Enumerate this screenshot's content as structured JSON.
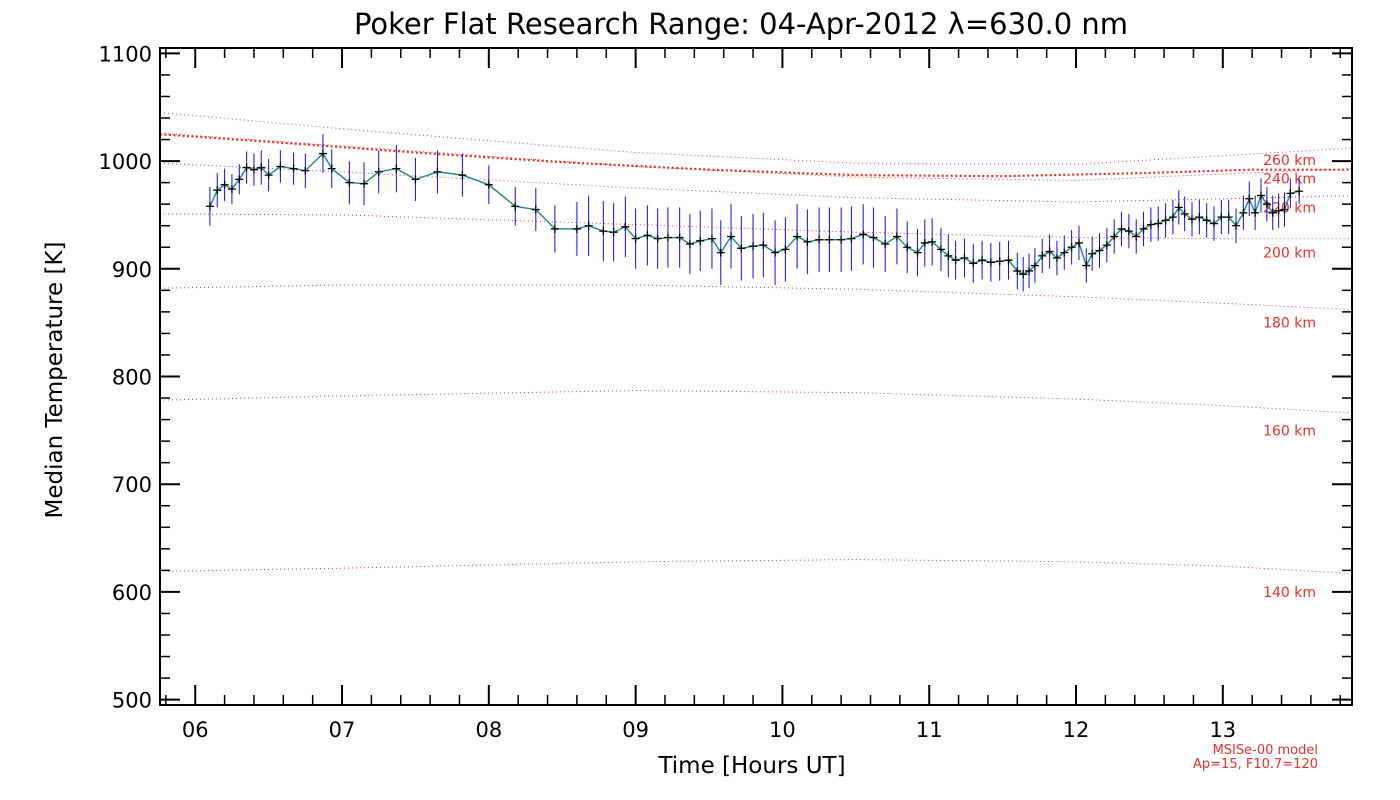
{
  "chart_data": {
    "type": "line",
    "title": "Poker Flat Research Range: 04-Apr-2012 λ=630.0 nm",
    "xlabel": "Time [Hours UT]",
    "ylabel": "Median Temperature [K]",
    "xlim": [
      5.76,
      13.88
    ],
    "ylim": [
      495,
      1105
    ],
    "x_ticks": [
      "06",
      "07",
      "08",
      "09",
      "10",
      "11",
      "12",
      "13"
    ],
    "x_tick_values": [
      6,
      7,
      8,
      9,
      10,
      11,
      12,
      13
    ],
    "y_ticks": [
      "500",
      "600",
      "700",
      "800",
      "900",
      "1000",
      "1100"
    ],
    "y_tick_values": [
      500,
      600,
      700,
      800,
      900,
      1000,
      1100
    ],
    "grid": false,
    "colors": {
      "data": "#000000",
      "connector": "#1a8a8a",
      "error_bars": "#1010e8",
      "model": "#e8302a",
      "axes": "#000000"
    },
    "series": [
      {
        "points": [
          [
            6.1,
            958,
            18
          ],
          [
            6.15,
            973,
            16
          ],
          [
            6.2,
            978,
            15
          ],
          [
            6.25,
            974,
            14
          ],
          [
            6.3,
            983,
            14
          ],
          [
            6.35,
            994,
            15
          ],
          [
            6.4,
            992,
            15
          ],
          [
            6.45,
            994,
            16
          ],
          [
            6.5,
            987,
            15
          ],
          [
            6.58,
            995,
            15
          ],
          [
            6.67,
            993,
            15
          ],
          [
            6.75,
            991,
            16
          ],
          [
            6.87,
            1007,
            18
          ],
          [
            6.93,
            993,
            18
          ],
          [
            7.05,
            980,
            20
          ],
          [
            7.15,
            979,
            20
          ],
          [
            7.25,
            990,
            20
          ],
          [
            7.37,
            993,
            22
          ],
          [
            7.5,
            983,
            20
          ],
          [
            7.65,
            990,
            20
          ],
          [
            7.82,
            987,
            20
          ],
          [
            8.0,
            978,
            18
          ],
          [
            8.18,
            958,
            18
          ],
          [
            8.32,
            955,
            20
          ],
          [
            8.45,
            937,
            22
          ],
          [
            8.6,
            937,
            25
          ],
          [
            8.68,
            940,
            28
          ],
          [
            8.78,
            935,
            28
          ],
          [
            8.85,
            934,
            27
          ],
          [
            8.93,
            939,
            28
          ],
          [
            9.0,
            928,
            28
          ],
          [
            9.08,
            931,
            28
          ],
          [
            9.15,
            928,
            28
          ],
          [
            9.22,
            929,
            28
          ],
          [
            9.3,
            929,
            28
          ],
          [
            9.37,
            923,
            28
          ],
          [
            9.44,
            926,
            28
          ],
          [
            9.52,
            928,
            28
          ],
          [
            9.58,
            915,
            30
          ],
          [
            9.65,
            930,
            30
          ],
          [
            9.72,
            919,
            30
          ],
          [
            9.8,
            921,
            30
          ],
          [
            9.87,
            922,
            30
          ],
          [
            9.95,
            915,
            30
          ],
          [
            10.02,
            918,
            30
          ],
          [
            10.1,
            930,
            30
          ],
          [
            10.17,
            925,
            30
          ],
          [
            10.25,
            927,
            30
          ],
          [
            10.32,
            927,
            30
          ],
          [
            10.4,
            927,
            30
          ],
          [
            10.47,
            928,
            30
          ],
          [
            10.55,
            932,
            28
          ],
          [
            10.62,
            929,
            28
          ],
          [
            10.7,
            923,
            26
          ],
          [
            10.78,
            930,
            26
          ],
          [
            10.85,
            920,
            24
          ],
          [
            10.92,
            915,
            22
          ],
          [
            10.97,
            924,
            22
          ],
          [
            11.02,
            925,
            22
          ],
          [
            11.08,
            918,
            20
          ],
          [
            11.13,
            912,
            20
          ],
          [
            11.18,
            908,
            18
          ],
          [
            11.24,
            910,
            18
          ],
          [
            11.3,
            905,
            18
          ],
          [
            11.36,
            908,
            18
          ],
          [
            11.42,
            906,
            18
          ],
          [
            11.48,
            907,
            18
          ],
          [
            11.54,
            908,
            18
          ],
          [
            11.6,
            898,
            17
          ],
          [
            11.64,
            895,
            16
          ],
          [
            11.68,
            898,
            16
          ],
          [
            11.72,
            903,
            16
          ],
          [
            11.77,
            912,
            16
          ],
          [
            11.82,
            916,
            16
          ],
          [
            11.87,
            910,
            16
          ],
          [
            11.92,
            915,
            16
          ],
          [
            11.97,
            920,
            16
          ],
          [
            12.02,
            924,
            16
          ],
          [
            12.07,
            903,
            16
          ],
          [
            12.11,
            914,
            16
          ],
          [
            12.16,
            917,
            16
          ],
          [
            12.21,
            922,
            16
          ],
          [
            12.26,
            930,
            16
          ],
          [
            12.31,
            937,
            16
          ],
          [
            12.36,
            935,
            16
          ],
          [
            12.41,
            930,
            16
          ],
          [
            12.46,
            937,
            16
          ],
          [
            12.51,
            941,
            16
          ],
          [
            12.56,
            942,
            16
          ],
          [
            12.61,
            945,
            16
          ],
          [
            12.66,
            948,
            16
          ],
          [
            12.7,
            957,
            16
          ],
          [
            12.74,
            951,
            16
          ],
          [
            12.79,
            946,
            16
          ],
          [
            12.84,
            948,
            16
          ],
          [
            12.89,
            945,
            16
          ],
          [
            12.94,
            942,
            16
          ],
          [
            12.99,
            948,
            16
          ],
          [
            13.04,
            948,
            16
          ],
          [
            13.09,
            940,
            16
          ],
          [
            13.14,
            952,
            16
          ],
          [
            13.18,
            965,
            16
          ],
          [
            13.22,
            952,
            16
          ],
          [
            13.26,
            968,
            16
          ],
          [
            13.3,
            960,
            16
          ],
          [
            13.34,
            952,
            16
          ],
          [
            13.38,
            954,
            16
          ],
          [
            13.42,
            955,
            16
          ],
          [
            13.46,
            970,
            14
          ],
          [
            13.52,
            972,
            12
          ]
        ]
      }
    ],
    "model_curves": [
      {
        "label": "140 km",
        "values": [
          [
            5.76,
            619
          ],
          [
            7.0,
            622
          ],
          [
            9.0,
            628
          ],
          [
            10.5,
            630
          ],
          [
            12.0,
            628
          ],
          [
            13.0,
            624
          ],
          [
            13.88,
            617
          ]
        ]
      },
      {
        "label": "160 km",
        "values": [
          [
            5.76,
            778
          ],
          [
            7.0,
            782
          ],
          [
            9.0,
            787
          ],
          [
            10.5,
            785
          ],
          [
            12.0,
            779
          ],
          [
            13.0,
            773
          ],
          [
            13.88,
            766
          ]
        ]
      },
      {
        "label": "180 km",
        "values": [
          [
            5.76,
            882
          ],
          [
            7.0,
            885
          ],
          [
            9.0,
            885
          ],
          [
            10.5,
            881
          ],
          [
            12.0,
            874
          ],
          [
            13.0,
            868
          ],
          [
            13.88,
            862
          ]
        ]
      },
      {
        "label": "200 km",
        "values": [
          [
            5.76,
            951
          ],
          [
            7.0,
            950
          ],
          [
            9.0,
            941
          ],
          [
            10.5,
            934
          ],
          [
            12.0,
            929
          ],
          [
            13.0,
            928
          ],
          [
            13.88,
            928
          ]
        ]
      },
      {
        "label": "220 km",
        "values": [
          [
            5.76,
            998
          ],
          [
            7.0,
            990
          ],
          [
            9.0,
            975
          ],
          [
            10.5,
            966
          ],
          [
            12.0,
            962
          ],
          [
            13.0,
            965
          ],
          [
            13.88,
            968
          ]
        ]
      },
      {
        "label": "240 km",
        "values": [
          [
            5.76,
            1026
          ],
          [
            7.0,
            1014
          ],
          [
            9.0,
            995
          ],
          [
            10.5,
            985
          ],
          [
            12.0,
            982
          ],
          [
            13.0,
            988
          ],
          [
            13.88,
            993
          ]
        ]
      },
      {
        "label": "260 km",
        "values": [
          [
            5.76,
            1045
          ],
          [
            7.0,
            1030
          ],
          [
            9.0,
            1008
          ],
          [
            10.5,
            998
          ],
          [
            12.0,
            997
          ],
          [
            13.0,
            1005
          ],
          [
            13.88,
            1012
          ]
        ]
      }
    ],
    "emphasized_model_curve": [
      [
        5.76,
        1025
      ],
      [
        6.5,
        1018
      ],
      [
        7.5,
        1008
      ],
      [
        8.5,
        999
      ],
      [
        9.5,
        992
      ],
      [
        10.5,
        987
      ],
      [
        11.5,
        986
      ],
      [
        12.5,
        989
      ],
      [
        13.2,
        992
      ],
      [
        13.88,
        992
      ]
    ],
    "model_label_positions": [
      {
        "label": "140 km",
        "y": 600
      },
      {
        "label": "160 km",
        "y": 750
      },
      {
        "label": "180 km",
        "y": 850
      },
      {
        "label": "200 km",
        "y": 915
      },
      {
        "label": "220 km",
        "y": 957
      },
      {
        "label": "240 km",
        "y": 984
      },
      {
        "label": "260 km",
        "y": 1001
      }
    ],
    "notes": [
      "MSISe-00 model",
      "Ap=15, F10.7=120"
    ]
  }
}
